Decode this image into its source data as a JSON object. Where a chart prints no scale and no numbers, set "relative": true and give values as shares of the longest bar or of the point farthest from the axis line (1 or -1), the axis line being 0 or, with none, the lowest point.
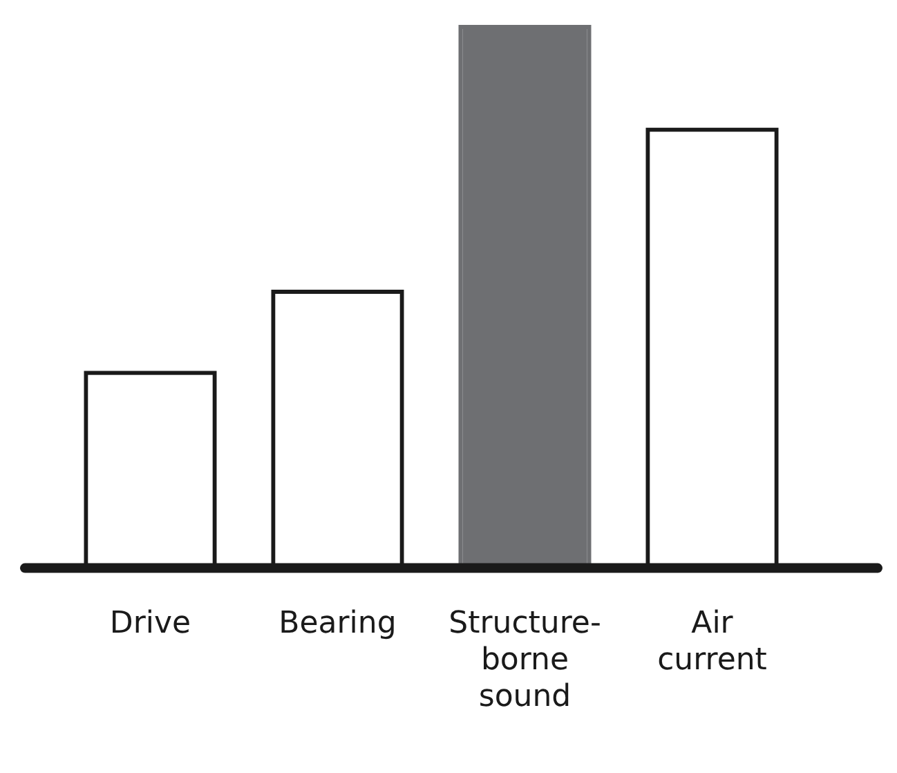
{
  "chart_data": {
    "type": "bar",
    "relative": true,
    "categories": [
      "Drive",
      "Bearing",
      "Structure-borne sound",
      "Air current"
    ],
    "values": [
      0.36,
      0.51,
      1,
      0.81
    ],
    "colors": [
      "#1a1a1a",
      "#1a1a1a",
      "#6e6f72",
      "#1a1a1a"
    ]
  }
}
